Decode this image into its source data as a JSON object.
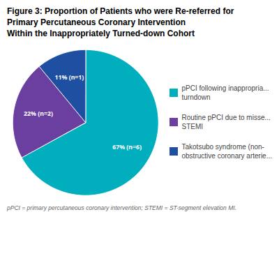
{
  "chart_data": {
    "type": "pie",
    "title": "Figure 3: Proportion of Patients who were Re-referred for\nPrimary Percutaneous Coronary Intervention\nWithin the Inappropriately Turned-down Cohort",
    "categories": [
      "pPCI following inappropria...\nturndown",
      "Routine pPCI due to misse...\nSTEMI",
      "Takotsubo syndrome (non-\nobstructive coronary arterie..."
    ],
    "values": [
      67,
      22,
      11
    ],
    "value_labels": [
      "67% (n=6)",
      "22% (n=2)",
      "11% (n=1)"
    ],
    "colors": [
      "#00AEBD",
      "#6B3FA0",
      "#1E4FA0"
    ],
    "data_labels": true,
    "legend": "right",
    "annotations": [
      "pPCI = primary percutaneous coronary intervention; STEMI = ST-segment elevation MI."
    ]
  }
}
